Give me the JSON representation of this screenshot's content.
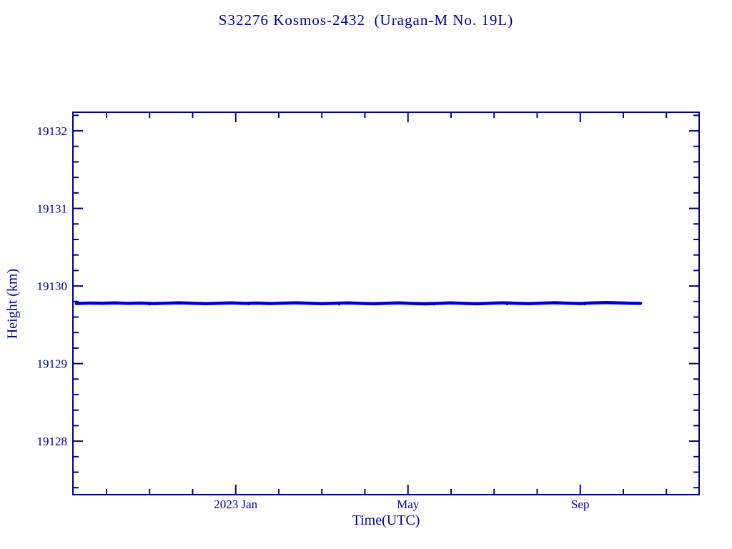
{
  "colors": {
    "axis": "#00008B",
    "text": "#00008B",
    "line": "#0000CC",
    "background": "#FFFFFF"
  },
  "chart_data": {
    "type": "line",
    "title": "S32276 Kosmos-2432  (Uragan-M No. 19L)",
    "xlabel": "Time(UTC)",
    "ylabel": "Height (km)",
    "x_units": "months relative to 2023 Jan",
    "xlim": [
      -3.78,
      10.76
    ],
    "ylim": [
      19127.31,
      19132.24
    ],
    "yticks": [
      19128,
      19129,
      19130,
      19131,
      19132
    ],
    "y_minor_step": 0.2,
    "xticks": [
      {
        "month": 0,
        "label": "2023 Jan"
      },
      {
        "month": 4,
        "label": "May"
      },
      {
        "month": 8,
        "label": "Sep"
      }
    ],
    "x_minor_step": 1,
    "legend": "off",
    "grid": "off",
    "mean_height_km": 19129.778,
    "points": [
      [
        -3.7,
        19129.775
      ],
      [
        -3.4,
        19129.78
      ],
      [
        -3.1,
        19129.777
      ],
      [
        -2.8,
        19129.782
      ],
      [
        -2.5,
        19129.776
      ],
      [
        -2.2,
        19129.78
      ],
      [
        -1.9,
        19129.774
      ],
      [
        -1.6,
        19129.779
      ],
      [
        -1.3,
        19129.783
      ],
      [
        -1.0,
        19129.777
      ],
      [
        -0.7,
        19129.772
      ],
      [
        -0.4,
        19129.778
      ],
      [
        -0.1,
        19129.781
      ],
      [
        0.2,
        19129.776
      ],
      [
        0.5,
        19129.78
      ],
      [
        0.8,
        19129.774
      ],
      [
        1.1,
        19129.779
      ],
      [
        1.4,
        19129.783
      ],
      [
        1.7,
        19129.777
      ],
      [
        2.0,
        19129.772
      ],
      [
        2.3,
        19129.778
      ],
      [
        2.6,
        19129.782
      ],
      [
        2.9,
        19129.776
      ],
      [
        3.2,
        19129.771
      ],
      [
        3.5,
        19129.777
      ],
      [
        3.8,
        19129.781
      ],
      [
        4.1,
        19129.775
      ],
      [
        4.4,
        19129.77
      ],
      [
        4.7,
        19129.776
      ],
      [
        5.0,
        19129.781
      ],
      [
        5.3,
        19129.776
      ],
      [
        5.6,
        19129.771
      ],
      [
        5.9,
        19129.778
      ],
      [
        6.2,
        19129.783
      ],
      [
        6.5,
        19129.778
      ],
      [
        6.8,
        19129.773
      ],
      [
        7.1,
        19129.779
      ],
      [
        7.4,
        19129.784
      ],
      [
        7.7,
        19129.779
      ],
      [
        8.0,
        19129.774
      ],
      [
        8.3,
        19129.781
      ],
      [
        8.6,
        19129.787
      ],
      [
        8.9,
        19129.782
      ],
      [
        9.2,
        19129.778
      ],
      [
        9.4,
        19129.776
      ]
    ],
    "outlier_points": [
      [
        -2.0,
        19129.764
      ],
      [
        0.3,
        19129.765
      ],
      [
        2.4,
        19129.763
      ],
      [
        4.6,
        19129.764
      ],
      [
        6.3,
        19129.766
      ],
      [
        8.1,
        19129.765
      ]
    ]
  }
}
